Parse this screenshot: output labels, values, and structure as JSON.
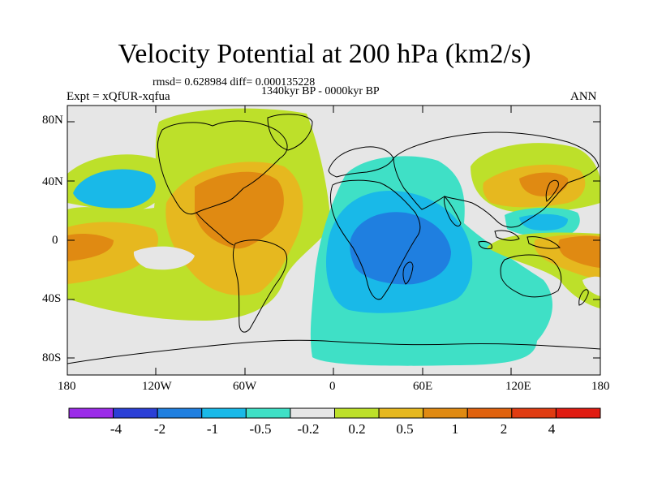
{
  "title": "Velocity Potential at 200 hPa (km2/s)",
  "stats_line": "rmsd= 0.628984  diff= 0.000135228",
  "period": "1340kyr BP - 0000kyr BP",
  "experiment": "Expt = xQfUR-xqfua",
  "season": "ANN",
  "y_axis_labels": [
    "80N",
    "40N",
    "0",
    "40S",
    "80S"
  ],
  "x_axis_labels": [
    "180",
    "120W",
    "60W",
    "0",
    "60E",
    "120E",
    "180"
  ],
  "colorbar": {
    "colors": [
      "#9b2be8",
      "#2b3fd6",
      "#1f7fe0",
      "#19b9e8",
      "#3fe0c6",
      "#e6e6e6",
      "#bde02a",
      "#e6b81f",
      "#e08a12",
      "#e0620e",
      "#e03c12",
      "#e01c12"
    ],
    "labels": [
      "-4",
      "-2",
      "-1",
      "-0.5",
      "-0.2",
      "0.2",
      "0.5",
      "1",
      "2",
      "4"
    ]
  }
}
